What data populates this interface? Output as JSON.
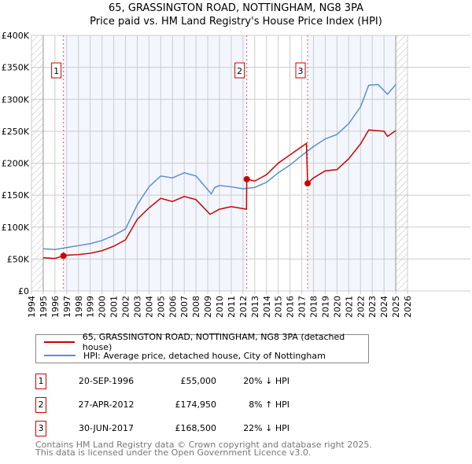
{
  "chart_data": {
    "type": "line",
    "title": "65, GRASSINGTON ROAD, NOTTINGHAM, NG8 3PA",
    "subtitle": "Price paid vs. HM Land Registry's House Price Index (HPI)",
    "xlim": [
      1994,
      2026
    ],
    "ylim": [
      0,
      400000
    ],
    "x_ticks": [
      "1994",
      "1995",
      "1996",
      "1997",
      "1998",
      "1999",
      "2000",
      "2001",
      "2002",
      "2003",
      "2004",
      "2005",
      "2006",
      "2007",
      "2008",
      "2009",
      "2010",
      "2011",
      "2012",
      "2013",
      "2014",
      "2015",
      "2016",
      "2017",
      "2018",
      "2019",
      "2020",
      "2021",
      "2022",
      "2023",
      "2024",
      "2025",
      "2026"
    ],
    "y_ticks": [
      {
        "v": 0,
        "label": "£0"
      },
      {
        "v": 50000,
        "label": "£50K"
      },
      {
        "v": 100000,
        "label": "£100K"
      },
      {
        "v": 150000,
        "label": "£150K"
      },
      {
        "v": 200000,
        "label": "£200K"
      },
      {
        "v": 250000,
        "label": "£250K"
      },
      {
        "v": 300000,
        "label": "£300K"
      },
      {
        "v": 350000,
        "label": "£350K"
      },
      {
        "v": 400000,
        "label": "£400K"
      }
    ],
    "grid": true,
    "series": [
      {
        "name": "65, GRASSINGTON ROAD, NOTTINGHAM, NG8 3PA (detached house)",
        "color": "#cc0000",
        "x": [
          1995,
          1996,
          1996.72,
          1997,
          1998,
          1999,
          2000,
          2001,
          2002,
          2003,
          2004,
          2005,
          2006,
          2007,
          2008,
          2009.2,
          2010,
          2011,
          2012.3,
          2012.32,
          2013,
          2014,
          2015,
          2016,
          2017.4,
          2017.5,
          2018,
          2019,
          2020,
          2021,
          2022,
          2022.7,
          2024,
          2024.3,
          2025
        ],
        "y": [
          52000,
          51000,
          55000,
          56000,
          57000,
          59000,
          63000,
          70000,
          80000,
          112000,
          130000,
          145000,
          140000,
          148000,
          143000,
          120000,
          128000,
          132000,
          128000,
          174950,
          172000,
          182000,
          200000,
          213000,
          231000,
          168500,
          177000,
          188000,
          190000,
          207000,
          230000,
          252000,
          250000,
          242000,
          251000
        ]
      },
      {
        "name": "HPI: Average price, detached house, City of Nottingham",
        "color": "#5b8fd4",
        "x": [
          1995,
          1996,
          1997,
          1998,
          1999,
          2000,
          2001,
          2002,
          2003,
          2004,
          2005,
          2006,
          2007,
          2008,
          2009.3,
          2009.6,
          2010,
          2011,
          2012,
          2013,
          2014,
          2015,
          2016,
          2017,
          2018,
          2019,
          2020,
          2021,
          2022,
          2022.7,
          2023.5,
          2024.3,
          2025
        ],
        "y": [
          66000,
          65000,
          68000,
          71000,
          74000,
          79000,
          87000,
          97000,
          135000,
          163000,
          180000,
          177000,
          185000,
          180000,
          152000,
          162000,
          165000,
          163000,
          160000,
          162000,
          170000,
          185000,
          197000,
          212000,
          226000,
          238000,
          245000,
          262000,
          288000,
          322000,
          323000,
          308000,
          323000
        ]
      }
    ],
    "sales": [
      {
        "label": "1",
        "x": 1996.72,
        "y": 55000,
        "date": "20-SEP-1996",
        "price": "£55,000",
        "hpi": "20% ↓ HPI"
      },
      {
        "label": "2",
        "x": 2012.32,
        "y": 174950,
        "date": "27-APR-2012",
        "price": "£174,950",
        "hpi": "8% ↑ HPI"
      },
      {
        "label": "3",
        "x": 2017.5,
        "y": 168500,
        "date": "30-JUN-2017",
        "price": "£168,500",
        "hpi": "22% ↓ HPI"
      }
    ],
    "legend_position": "bottom"
  },
  "footer": {
    "line1": "Contains HM Land Registry data © Crown copyright and database right 2025.",
    "line2": "This data is licensed under the Open Government Licence v3.0."
  }
}
